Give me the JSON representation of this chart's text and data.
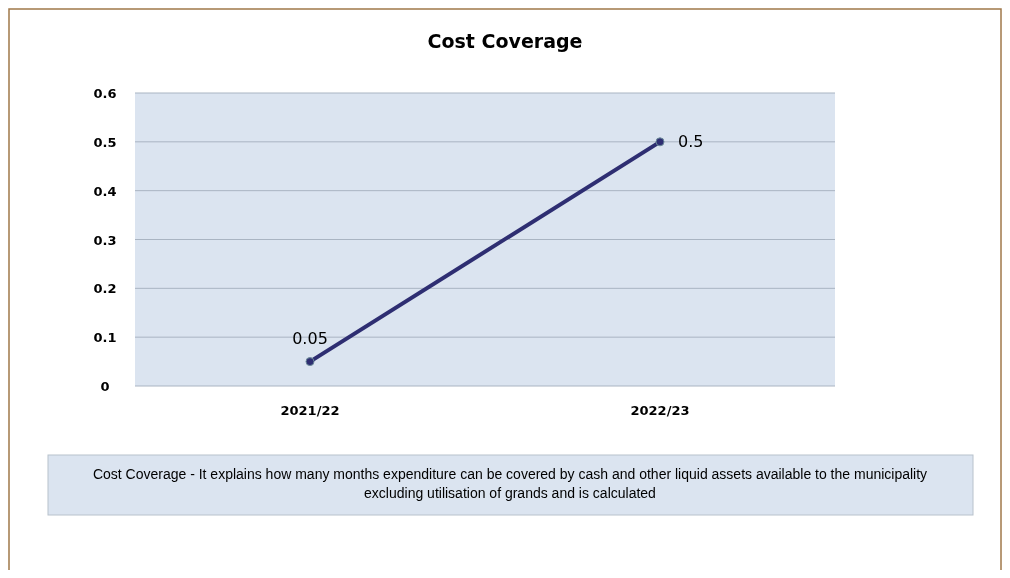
{
  "chart_data": {
    "type": "line",
    "title": "Cost Coverage",
    "categories": [
      "2021/22",
      "2022/23"
    ],
    "series": [
      {
        "color": "#2e2e72",
        "values": [
          0.05,
          0.5
        ]
      }
    ],
    "ylim": [
      0,
      0.6
    ],
    "yticks": [
      0,
      0.1,
      0.2,
      0.3,
      0.4,
      0.5,
      0.6
    ],
    "grid": "y",
    "marker": "circle",
    "line_style": "solid",
    "data_labels": true,
    "annotations": [
      "Cost Coverage - It explains how many months expenditure can be covered by cash and other liquid assets available to the municipality excluding utilisation of grands and is calculated"
    ]
  }
}
